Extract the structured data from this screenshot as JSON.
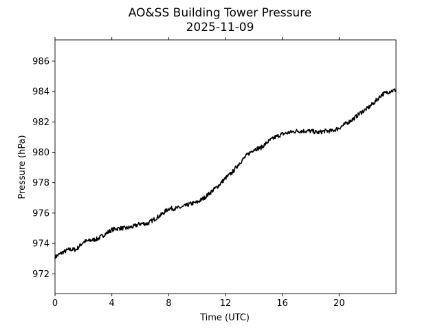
{
  "chart_data": {
    "type": "line",
    "title": "AO&SS Building Tower Pressure",
    "subtitle": "2025-11-09",
    "xlabel": "Time (UTC)",
    "ylabel": "Pressure (hPa)",
    "xlim": [
      0,
      24
    ],
    "ylim": [
      970.7,
      987.4
    ],
    "x_ticks": [
      0,
      4,
      8,
      12,
      16,
      20
    ],
    "y_ticks": [
      972,
      974,
      976,
      978,
      980,
      982,
      984,
      986
    ],
    "grid": false,
    "line_color": "#000000",
    "series": [
      {
        "x": [
          0,
          0.5,
          1,
          1.5,
          2,
          2.5,
          3,
          3.5,
          4,
          4.5,
          5,
          5.5,
          6,
          6.5,
          7,
          7.5,
          8,
          8.5,
          9,
          9.5,
          10,
          10.5,
          11,
          11.5,
          12,
          12.5,
          13,
          13.5,
          14,
          14.5,
          15,
          15.5,
          16,
          16.5,
          17,
          17.5,
          18,
          18.5,
          19,
          19.5,
          20,
          20.5,
          21,
          21.5,
          22,
          22.5,
          23,
          23.5,
          24
        ],
        "values": [
          973.1,
          973.4,
          973.6,
          973.6,
          974.1,
          974.2,
          974.3,
          974.6,
          974.9,
          975.0,
          975.0,
          975.1,
          975.3,
          975.3,
          975.6,
          975.9,
          976.3,
          976.3,
          976.4,
          976.6,
          976.7,
          977.0,
          977.4,
          977.8,
          978.3,
          978.7,
          979.3,
          979.8,
          980.2,
          980.3,
          980.7,
          981.0,
          981.2,
          981.3,
          981.4,
          981.4,
          981.4,
          981.3,
          981.4,
          981.4,
          981.6,
          981.9,
          982.2,
          982.6,
          982.9,
          983.3,
          983.8,
          984.0,
          984.1
        ]
      }
    ]
  }
}
